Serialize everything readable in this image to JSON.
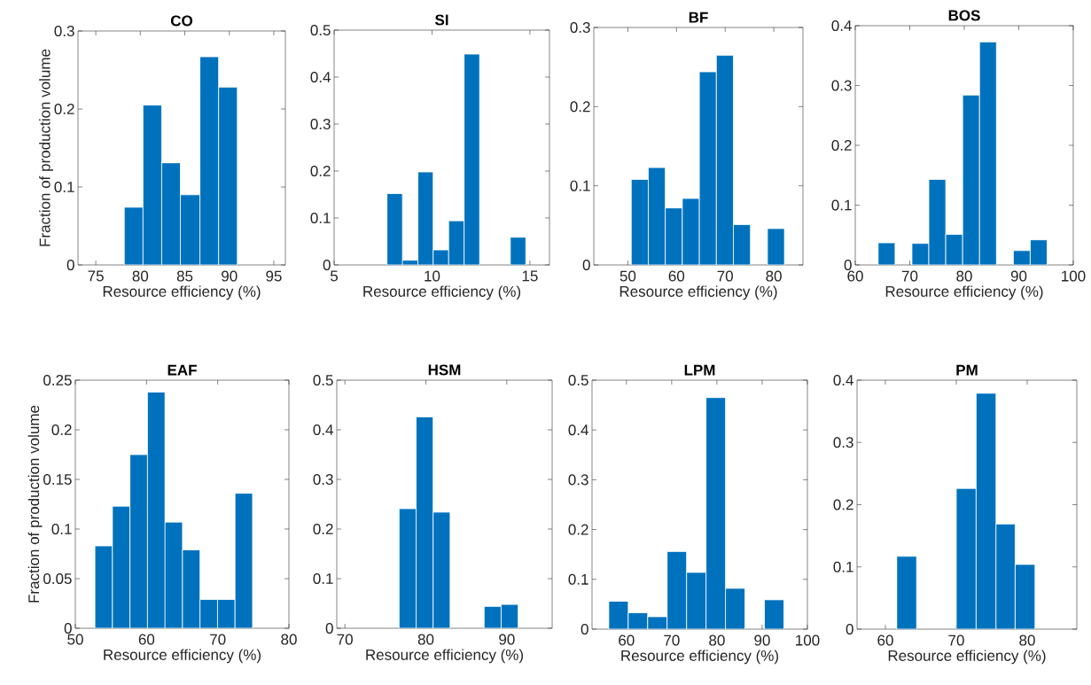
{
  "chart_data": [
    {
      "type": "histogram",
      "title": "CO",
      "xlabel": "Resource efficiency (%)",
      "ylabel": "Fraction of production volume",
      "color": "#0072bd",
      "bins": [
        78.2,
        80.3,
        82.4,
        84.5,
        86.7,
        88.8,
        90.9
      ],
      "values": [
        0.074,
        0.205,
        0.131,
        0.09,
        0.267,
        0.228
      ],
      "xlim": [
        73,
        96.3
      ],
      "ylim": [
        0,
        0.3
      ],
      "xticks": [
        75,
        80,
        85,
        90,
        95
      ],
      "yticks": [
        0,
        0.1,
        0.2,
        0.3
      ]
    },
    {
      "type": "histogram",
      "title": "SI",
      "xlabel": "Resource efficiency (%)",
      "color": "#0072bd",
      "bins": [
        7.7,
        8.49,
        9.28,
        10.06,
        10.85,
        11.64,
        12.43,
        14.0,
        14.79
      ],
      "values": [
        0.152,
        0.01,
        0.198,
        0.032,
        0.094,
        0.449,
        0,
        0.059
      ],
      "xlim": [
        5,
        16
      ],
      "ylim": [
        0,
        0.5
      ],
      "xticks": [
        5,
        10,
        15
      ],
      "yticks": [
        0,
        0.1,
        0.2,
        0.3,
        0.4,
        0.5
      ]
    },
    {
      "type": "histogram",
      "title": "BF",
      "xlabel": "Resource efficiency (%)",
      "color": "#0072bd",
      "bins": [
        50.7,
        54.2,
        57.7,
        61.2,
        64.7,
        68.2,
        71.7,
        75.2,
        78.7,
        82.2
      ],
      "values": [
        0.108,
        0.123,
        0.072,
        0.084,
        0.244,
        0.265,
        0.051,
        0,
        0.046
      ],
      "xlim": [
        43,
        86
      ],
      "ylim": [
        0,
        0.3
      ],
      "xticks": [
        50,
        60,
        70,
        80
      ],
      "yticks": [
        0,
        0.1,
        0.2,
        0.3
      ]
    },
    {
      "type": "histogram",
      "title": "BOS",
      "xlabel": "Resource efficiency (%)",
      "color": "#0072bd",
      "bins": [
        64.2,
        67.3,
        70.4,
        73.5,
        76.6,
        79.7,
        82.8,
        85.9,
        89.0,
        92.1,
        95.2
      ],
      "values": [
        0.037,
        0,
        0.036,
        0.143,
        0.051,
        0.284,
        0.373,
        0,
        0.024,
        0.042
      ],
      "xlim": [
        60,
        100
      ],
      "ylim": [
        0,
        0.4
      ],
      "xticks": [
        60,
        70,
        80,
        90,
        100
      ],
      "yticks": [
        0,
        0.1,
        0.2,
        0.3,
        0.4
      ]
    },
    {
      "type": "histogram",
      "title": "EAF",
      "xlabel": "Resource efficiency (%)",
      "ylabel": "Fraction of production volume",
      "color": "#0072bd",
      "bins": [
        52.75,
        55.21,
        57.67,
        60.13,
        62.59,
        65.05,
        67.51,
        69.97,
        72.43,
        74.89
      ],
      "values": [
        0.083,
        0.123,
        0.175,
        0.238,
        0.107,
        0.079,
        0.029,
        0.029,
        0.136
      ],
      "xlim": [
        50,
        80
      ],
      "ylim": [
        0,
        0.25
      ],
      "xticks": [
        50,
        60,
        70,
        80
      ],
      "yticks": [
        0,
        0.05,
        0.1,
        0.15,
        0.2,
        0.25
      ]
    },
    {
      "type": "histogram",
      "title": "HSM",
      "xlabel": "Resource efficiency (%)",
      "color": "#0072bd",
      "bins": [
        76.7,
        78.8,
        80.9,
        83.0,
        87.2,
        89.3,
        91.4
      ],
      "values": [
        0.241,
        0.426,
        0.234,
        0,
        0.044,
        0.048
      ],
      "xlim": [
        69,
        95.6
      ],
      "ylim": [
        0,
        0.5
      ],
      "xticks": [
        70,
        80,
        90
      ],
      "yticks": [
        0,
        0.1,
        0.2,
        0.3,
        0.4,
        0.5
      ]
    },
    {
      "type": "histogram",
      "title": "LPM",
      "xlabel": "Resource efficiency (%)",
      "color": "#0072bd",
      "bins": [
        56.1,
        60.4,
        64.7,
        69.0,
        73.3,
        77.6,
        81.9,
        86.2,
        90.5,
        94.8
      ],
      "values": [
        0.056,
        0.033,
        0.025,
        0.156,
        0.114,
        0.465,
        0.082,
        0,
        0.059
      ],
      "xlim": [
        52.4,
        100
      ],
      "ylim": [
        0,
        0.5
      ],
      "xticks": [
        60,
        70,
        80,
        90,
        100
      ],
      "yticks": [
        0,
        0.1,
        0.2,
        0.3,
        0.4,
        0.5
      ]
    },
    {
      "type": "histogram",
      "title": "PM",
      "xlabel": "Resource efficiency (%)",
      "color": "#0072bd",
      "bins": [
        61.6,
        64.4,
        70.0,
        72.8,
        75.6,
        78.3,
        81.1
      ],
      "values": [
        0.117,
        0,
        0.226,
        0.379,
        0.169,
        0.104
      ],
      "xlim": [
        56,
        87
      ],
      "ylim": [
        0,
        0.4
      ],
      "xticks": [
        60,
        70,
        80
      ],
      "yticks": [
        0,
        0.1,
        0.2,
        0.3,
        0.4
      ]
    }
  ]
}
